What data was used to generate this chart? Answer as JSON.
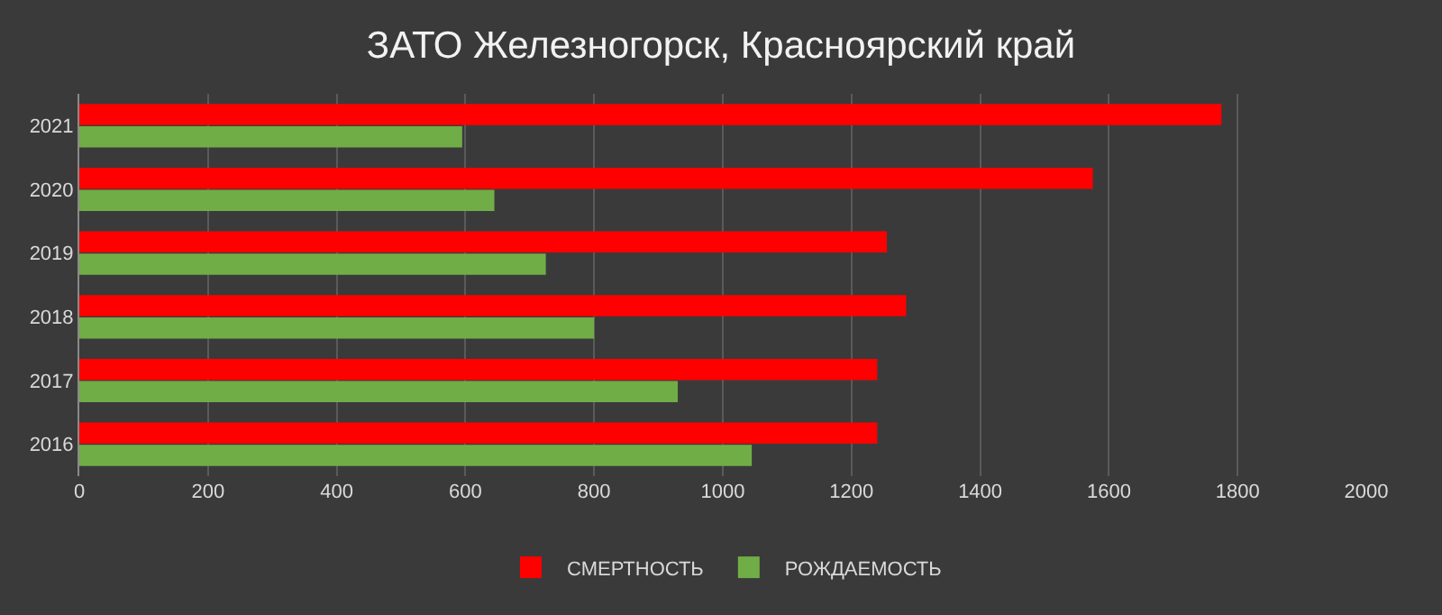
{
  "chart_data": {
    "type": "bar",
    "orientation": "horizontal",
    "title": "ЗАТО Железногорск, Красноярский край",
    "categories": [
      "2021",
      "2020",
      "2019",
      "2018",
      "2017",
      "2016"
    ],
    "series": [
      {
        "name": "СМЕРТНОСТЬ",
        "color": "#ff0000",
        "values": [
          1775,
          1575,
          1255,
          1285,
          1240,
          1240
        ]
      },
      {
        "name": "РОЖДАЕМОСТЬ",
        "color": "#70ad47",
        "values": [
          595,
          645,
          725,
          800,
          930,
          1045
        ]
      }
    ],
    "xlim": [
      0,
      2000
    ],
    "xticks": [
      0,
      200,
      400,
      600,
      800,
      1000,
      1200,
      1400,
      1600,
      1800,
      2000
    ],
    "grid": "x",
    "legend": "bottom"
  }
}
